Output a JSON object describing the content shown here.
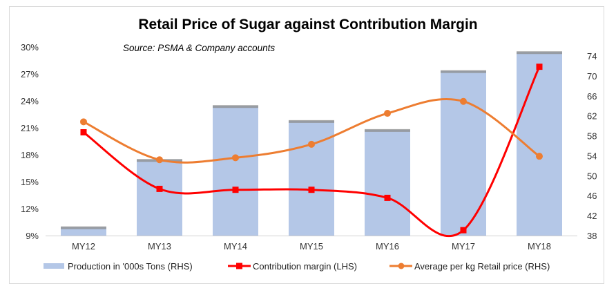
{
  "chart_data": {
    "type": "bar",
    "title": "Retail Price of Sugar against Contribution Margin",
    "subtitle": "Source: PSMA & Company accounts",
    "categories": [
      "MY12",
      "MY13",
      "MY14",
      "MY15",
      "MY16",
      "MY17",
      "MY18"
    ],
    "y_left": {
      "range": [
        9,
        30
      ],
      "ticks": [
        9,
        12,
        15,
        18,
        21,
        24,
        27,
        30
      ],
      "tick_labels": [
        "9%",
        "12%",
        "15%",
        "18%",
        "21%",
        "24%",
        "27%",
        "30%"
      ]
    },
    "y_right": {
      "range": [
        38,
        74
      ],
      "ticks": [
        38,
        42,
        46,
        50,
        54,
        58,
        62,
        66,
        70,
        74
      ],
      "tick_labels": [
        "38",
        "42",
        "46",
        "50",
        "54",
        "58",
        "62",
        "66",
        "70",
        "74"
      ]
    },
    "series": [
      {
        "name": "Production in '000s Tons (RHS)",
        "type": "bar",
        "axis": "right",
        "color": "#b4c7e7",
        "values": [
          39.7,
          53.2,
          64.0,
          61.0,
          59.2,
          71.0,
          74.8
        ]
      },
      {
        "name": "Contribution margin (LHS)",
        "type": "line",
        "axis": "left",
        "color": "#ff0000",
        "marker": "square",
        "smooth": true,
        "values": [
          20.5,
          14.2,
          14.1,
          14.1,
          13.2,
          9.6,
          27.8
        ]
      },
      {
        "name": "Average per kg Retail price (RHS)",
        "type": "line",
        "axis": "right",
        "color": "#ed7d31",
        "marker": "circle",
        "smooth": true,
        "values": [
          60.8,
          53.2,
          53.6,
          56.3,
          62.5,
          64.9,
          53.9
        ]
      }
    ],
    "grid": false,
    "legend_position": "bottom"
  }
}
